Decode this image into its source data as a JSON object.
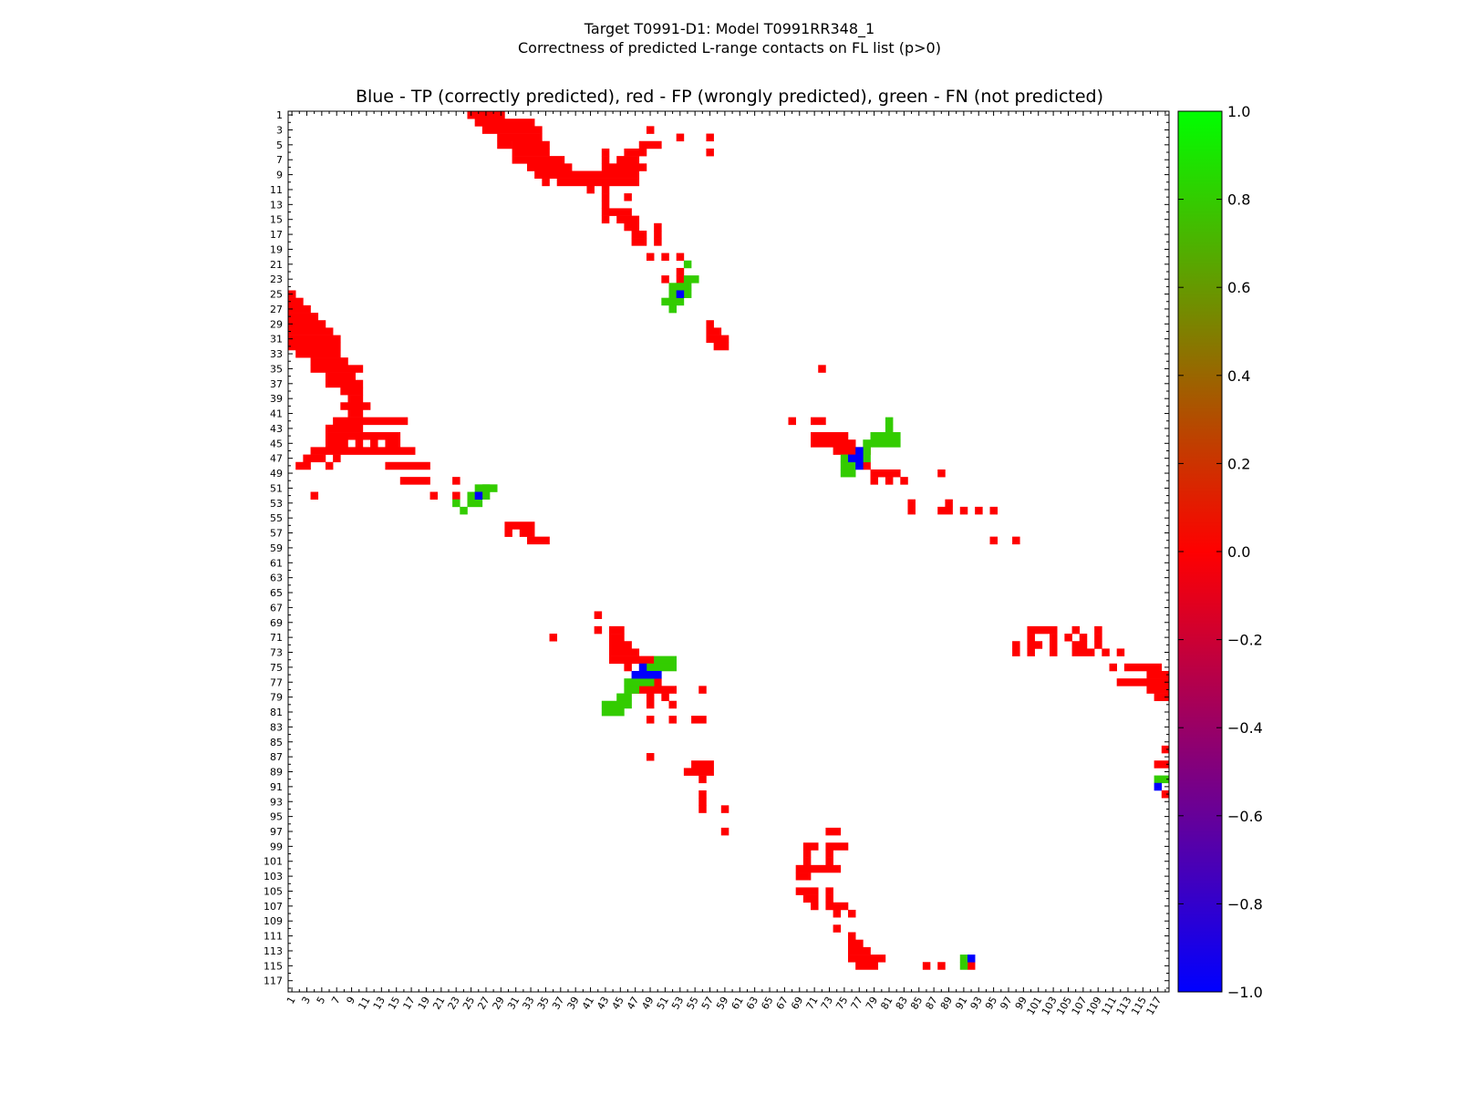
{
  "header": {
    "title_line1": "Target T0991-D1: Model T0991RR348_1",
    "title_line2": "Correctness of predicted L-range contacts on FL list (p>0)"
  },
  "chart_data": {
    "type": "heatmap",
    "title": "Blue - TP (correctly predicted), red - FP (wrongly predicted), green - FN (not predicted)",
    "xlabel": "",
    "ylabel": "",
    "n": 118,
    "x_tick_labels": [
      "1",
      "3",
      "5",
      "7",
      "9",
      "11",
      "13",
      "15",
      "17",
      "19",
      "21",
      "23",
      "25",
      "27",
      "29",
      "31",
      "33",
      "35",
      "37",
      "39",
      "41",
      "43",
      "45",
      "47",
      "49",
      "51",
      "53",
      "55",
      "57",
      "59",
      "61",
      "63",
      "65",
      "67",
      "69",
      "71",
      "73",
      "75",
      "77",
      "79",
      "81",
      "83",
      "85",
      "87",
      "89",
      "91",
      "93",
      "95",
      "97",
      "99",
      "101",
      "103",
      "105",
      "107",
      "109",
      "111",
      "113",
      "115",
      "117"
    ],
    "y_tick_labels": [
      "1",
      "3",
      "5",
      "7",
      "9",
      "11",
      "13",
      "15",
      "17",
      "19",
      "21",
      "23",
      "25",
      "27",
      "29",
      "31",
      "33",
      "35",
      "37",
      "39",
      "41",
      "43",
      "45",
      "47",
      "49",
      "51",
      "53",
      "55",
      "57",
      "59",
      "61",
      "63",
      "65",
      "67",
      "69",
      "71",
      "73",
      "75",
      "77",
      "79",
      "81",
      "83",
      "85",
      "87",
      "89",
      "91",
      "93",
      "95",
      "97",
      "99",
      "101",
      "103",
      "105",
      "107",
      "109",
      "111",
      "113",
      "115",
      "117"
    ],
    "colorbar": {
      "min": -1.0,
      "max": 1.0,
      "tick_labels": [
        "1.0",
        "0.8",
        "0.6",
        "0.4",
        "0.2",
        "0.0",
        "−0.2",
        "−0.4",
        "−0.6",
        "−0.8",
        "−1.0"
      ],
      "colors": [
        "#0000ff",
        "#ff0000",
        "#00ff00"
      ]
    },
    "value_legend": {
      "TP": -1,
      "FP": 0,
      "FN": 1
    },
    "colors": {
      "TP": "#0000ff",
      "FP": "#ff0000",
      "FN": "#33cc00"
    },
    "cells": {
      "FP": [
        [
          1,
          25,
          29
        ],
        [
          2,
          26,
          33
        ],
        [
          3,
          27,
          34
        ],
        [
          3,
          49,
          49
        ],
        [
          4,
          29,
          34
        ],
        [
          4,
          53,
          53
        ],
        [
          4,
          57,
          57
        ],
        [
          5,
          29,
          30
        ],
        [
          5,
          31,
          35
        ],
        [
          5,
          48,
          50
        ],
        [
          6,
          31,
          35
        ],
        [
          6,
          43,
          43
        ],
        [
          6,
          46,
          48
        ],
        [
          6,
          57,
          57
        ],
        [
          7,
          31,
          37
        ],
        [
          7,
          43,
          43
        ],
        [
          7,
          45,
          47
        ],
        [
          8,
          33,
          38
        ],
        [
          8,
          43,
          48
        ],
        [
          9,
          34,
          47
        ],
        [
          10,
          35,
          35
        ],
        [
          10,
          37,
          47
        ],
        [
          11,
          41,
          41
        ],
        [
          11,
          43,
          43
        ],
        [
          12,
          43,
          43
        ],
        [
          12,
          46,
          46
        ],
        [
          13,
          43,
          43
        ],
        [
          14,
          43,
          46
        ],
        [
          15,
          43,
          43
        ],
        [
          15,
          45,
          47
        ],
        [
          16,
          46,
          47
        ],
        [
          16,
          50,
          50
        ],
        [
          17,
          47,
          47
        ],
        [
          17,
          48,
          48
        ],
        [
          17,
          50,
          50
        ],
        [
          18,
          47,
          48
        ],
        [
          18,
          50,
          50
        ],
        [
          20,
          49,
          49
        ],
        [
          20,
          51,
          51
        ],
        [
          20,
          53,
          53
        ],
        [
          22,
          53,
          53
        ],
        [
          23,
          51,
          51
        ],
        [
          23,
          53,
          53
        ],
        [
          25,
          1,
          1
        ],
        [
          26,
          1,
          2
        ],
        [
          27,
          1,
          3
        ],
        [
          28,
          1,
          4
        ],
        [
          29,
          1,
          5
        ],
        [
          30,
          1,
          6
        ],
        [
          31,
          1,
          7
        ],
        [
          32,
          1,
          7
        ],
        [
          33,
          2,
          7
        ],
        [
          34,
          4,
          8
        ],
        [
          35,
          4,
          10
        ],
        [
          36,
          6,
          9
        ],
        [
          37,
          6,
          10
        ],
        [
          38,
          8,
          10
        ],
        [
          39,
          9,
          10
        ],
        [
          40,
          8,
          11
        ],
        [
          41,
          9,
          10
        ],
        [
          42,
          7,
          16
        ],
        [
          43,
          6,
          10
        ],
        [
          44,
          6,
          15
        ],
        [
          45,
          6,
          8
        ],
        [
          45,
          10,
          10
        ],
        [
          45,
          12,
          12
        ],
        [
          45,
          14,
          15
        ],
        [
          46,
          4,
          17
        ],
        [
          47,
          3,
          5
        ],
        [
          47,
          7,
          7
        ],
        [
          48,
          2,
          3
        ],
        [
          48,
          6,
          6
        ],
        [
          48,
          14,
          19
        ],
        [
          50,
          16,
          19
        ],
        [
          50,
          23,
          23
        ],
        [
          52,
          4,
          4
        ],
        [
          52,
          20,
          20
        ],
        [
          52,
          23,
          23
        ],
        [
          29,
          57,
          57
        ],
        [
          30,
          57,
          58
        ],
        [
          31,
          57,
          59
        ],
        [
          32,
          58,
          59
        ],
        [
          35,
          72,
          72
        ],
        [
          42,
          68,
          68
        ],
        [
          42,
          71,
          72
        ],
        [
          44,
          71,
          75
        ],
        [
          45,
          71,
          76
        ],
        [
          46,
          74,
          78
        ],
        [
          47,
          76,
          76
        ],
        [
          48,
          78,
          78
        ],
        [
          49,
          79,
          82
        ],
        [
          49,
          88,
          88
        ],
        [
          50,
          79,
          79
        ],
        [
          50,
          81,
          81
        ],
        [
          50,
          83,
          83
        ],
        [
          53,
          84,
          84
        ],
        [
          53,
          89,
          89
        ],
        [
          54,
          84,
          84
        ],
        [
          54,
          88,
          89
        ],
        [
          54,
          91,
          91
        ],
        [
          54,
          93,
          93
        ],
        [
          54,
          95,
          95
        ],
        [
          56,
          30,
          33
        ],
        [
          57,
          30,
          30
        ],
        [
          57,
          32,
          33
        ],
        [
          58,
          33,
          35
        ],
        [
          58,
          95,
          95
        ],
        [
          58,
          98,
          98
        ],
        [
          68,
          42,
          42
        ],
        [
          70,
          42,
          42
        ],
        [
          70,
          44,
          45
        ],
        [
          70,
          100,
          103
        ],
        [
          70,
          106,
          106
        ],
        [
          70,
          109,
          109
        ],
        [
          71,
          44,
          45
        ],
        [
          71,
          36,
          36
        ],
        [
          71,
          100,
          100
        ],
        [
          71,
          103,
          103
        ],
        [
          71,
          105,
          105
        ],
        [
          71,
          107,
          107
        ],
        [
          71,
          109,
          109
        ],
        [
          72,
          44,
          46
        ],
        [
          72,
          98,
          98
        ],
        [
          72,
          100,
          101
        ],
        [
          72,
          103,
          103
        ],
        [
          72,
          106,
          107
        ],
        [
          72,
          109,
          109
        ],
        [
          73,
          44,
          47
        ],
        [
          73,
          98,
          98
        ],
        [
          73,
          100,
          100
        ],
        [
          73,
          103,
          103
        ],
        [
          73,
          106,
          108
        ],
        [
          73,
          110,
          110
        ],
        [
          73,
          112,
          112
        ],
        [
          74,
          44,
          49
        ],
        [
          75,
          46,
          46
        ],
        [
          75,
          111,
          111
        ],
        [
          75,
          113,
          117
        ],
        [
          76,
          48,
          48
        ],
        [
          76,
          116,
          118
        ],
        [
          77,
          48,
          50
        ],
        [
          77,
          112,
          118
        ],
        [
          78,
          47,
          52
        ],
        [
          78,
          56,
          56
        ],
        [
          78,
          116,
          118
        ],
        [
          79,
          49,
          49
        ],
        [
          79,
          51,
          51
        ],
        [
          79,
          117,
          118
        ],
        [
          80,
          49,
          49
        ],
        [
          80,
          52,
          52
        ],
        [
          82,
          49,
          49
        ],
        [
          82,
          52,
          52
        ],
        [
          82,
          55,
          56
        ],
        [
          86,
          118,
          118
        ],
        [
          87,
          49,
          49
        ],
        [
          88,
          117,
          118
        ],
        [
          88,
          55,
          57
        ],
        [
          89,
          54,
          57
        ],
        [
          90,
          56,
          56
        ],
        [
          92,
          56,
          56
        ],
        [
          93,
          56,
          56
        ],
        [
          94,
          56,
          56
        ],
        [
          94,
          59,
          59
        ],
        [
          97,
          59,
          59
        ],
        [
          97,
          73,
          74
        ],
        [
          99,
          70,
          71
        ],
        [
          99,
          73,
          75
        ],
        [
          100,
          70,
          70
        ],
        [
          100,
          73,
          73
        ],
        [
          101,
          70,
          70
        ],
        [
          101,
          73,
          73
        ],
        [
          102,
          69,
          74
        ],
        [
          103,
          69,
          70
        ],
        [
          105,
          69,
          71
        ],
        [
          105,
          73,
          73
        ],
        [
          106,
          70,
          71
        ],
        [
          106,
          73,
          73
        ],
        [
          107,
          71,
          71
        ],
        [
          107,
          73,
          75
        ],
        [
          108,
          74,
          74
        ],
        [
          108,
          76,
          76
        ],
        [
          110,
          74,
          74
        ],
        [
          111,
          76,
          76
        ],
        [
          112,
          76,
          77
        ],
        [
          113,
          76,
          78
        ],
        [
          114,
          76,
          80
        ],
        [
          115,
          77,
          79
        ],
        [
          115,
          86,
          86
        ],
        [
          115,
          88,
          88
        ],
        [
          115,
          92,
          92
        ],
        [
          92,
          118,
          118
        ]
      ],
      "TP": [
        [
          25,
          53,
          53
        ],
        [
          46,
          77,
          77
        ],
        [
          47,
          76,
          77
        ],
        [
          48,
          77,
          77
        ],
        [
          52,
          26,
          26
        ],
        [
          75,
          48,
          48
        ],
        [
          76,
          47,
          50
        ],
        [
          91,
          117,
          117
        ],
        [
          114,
          92,
          92
        ]
      ],
      "FN": [
        [
          21,
          54,
          54
        ],
        [
          23,
          54,
          55
        ],
        [
          24,
          52,
          54
        ],
        [
          25,
          52,
          52
        ],
        [
          25,
          54,
          54
        ],
        [
          26,
          51,
          53
        ],
        [
          27,
          52,
          52
        ],
        [
          42,
          81,
          81
        ],
        [
          43,
          81,
          81
        ],
        [
          44,
          79,
          82
        ],
        [
          45,
          78,
          82
        ],
        [
          46,
          78,
          78
        ],
        [
          47,
          75,
          75
        ],
        [
          47,
          78,
          78
        ],
        [
          48,
          75,
          76
        ],
        [
          49,
          75,
          76
        ],
        [
          51,
          27,
          27
        ],
        [
          51,
          26,
          28
        ],
        [
          52,
          25,
          25
        ],
        [
          52,
          27,
          27
        ],
        [
          53,
          23,
          23
        ],
        [
          53,
          25,
          26
        ],
        [
          54,
          24,
          24
        ],
        [
          74,
          50,
          52
        ],
        [
          75,
          49,
          52
        ],
        [
          77,
          46,
          49
        ],
        [
          78,
          46,
          47
        ],
        [
          79,
          45,
          46
        ],
        [
          80,
          43,
          46
        ],
        [
          81,
          43,
          45
        ],
        [
          90,
          117,
          118
        ],
        [
          114,
          91,
          91
        ],
        [
          115,
          91,
          91
        ]
      ]
    }
  }
}
